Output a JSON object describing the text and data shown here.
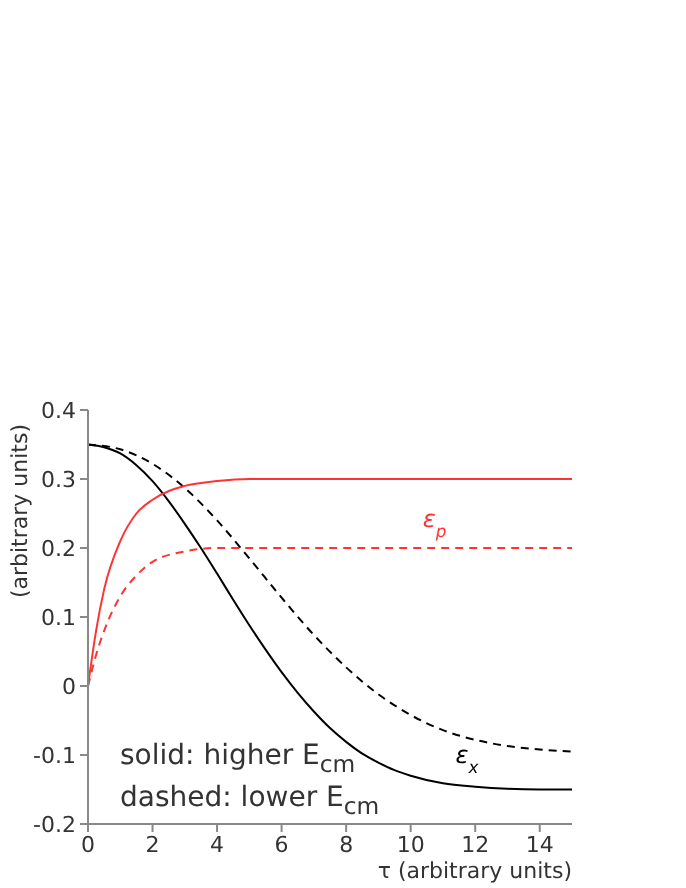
{
  "chart_data": {
    "type": "line",
    "xlabel": "τ (arbitrary units)",
    "ylabel": "(arbitrary units)",
    "xlim": [
      0,
      15
    ],
    "xticks": [
      0,
      2,
      4,
      6,
      8,
      10,
      12,
      14
    ],
    "ylim": [
      -0.2,
      0.4
    ],
    "yticks": [
      -0.2,
      -0.1,
      0,
      0.1,
      0.2,
      0.3,
      0.4
    ],
    "marker": "none",
    "series": [
      {
        "name": "ε$_{x}$",
        "color": "#000000",
        "line_style": "solid",
        "x": [
          0,
          0.5,
          1,
          1.5,
          2,
          2.5,
          3,
          3.5,
          4,
          4.5,
          5,
          5.5,
          6,
          6.5,
          7,
          7.5,
          8,
          8.5,
          9,
          9.5,
          10,
          11,
          12,
          13,
          14,
          15
        ],
        "values": [
          0.35,
          0.346,
          0.337,
          0.32,
          0.297,
          0.268,
          0.235,
          0.2,
          0.163,
          0.125,
          0.088,
          0.053,
          0.02,
          -0.01,
          -0.037,
          -0.061,
          -0.081,
          -0.098,
          -0.111,
          -0.122,
          -0.13,
          -0.141,
          -0.146,
          -0.149,
          -0.15,
          -0.15
        ]
      },
      {
        "color": "#000000",
        "line_style": "dashed",
        "x": [
          0,
          1,
          2,
          3,
          4,
          5,
          6,
          7,
          8,
          9,
          10,
          11,
          12,
          13,
          14,
          15
        ],
        "values": [
          0.35,
          0.343,
          0.322,
          0.287,
          0.24,
          0.185,
          0.128,
          0.074,
          0.027,
          -0.012,
          -0.042,
          -0.064,
          -0.078,
          -0.087,
          -0.092,
          -0.095
        ]
      },
      {
        "name": "ε$_{p}$",
        "color": "#ff3333",
        "line_style": "solid",
        "x": [
          0,
          0.25,
          0.5,
          1,
          1.5,
          2,
          3,
          4,
          5,
          7,
          10,
          15
        ],
        "values": [
          0,
          0.08,
          0.14,
          0.21,
          0.25,
          0.27,
          0.29,
          0.297,
          0.3,
          0.3,
          0.3,
          0.3
        ]
      },
      {
        "color": "#ff3333",
        "line_style": "dashed",
        "x": [
          0,
          0.25,
          0.5,
          1,
          1.5,
          2,
          3,
          4,
          5,
          7,
          10,
          15
        ],
        "values": [
          0,
          0.045,
          0.08,
          0.13,
          0.16,
          0.18,
          0.195,
          0.2,
          0.2,
          0.2,
          0.2,
          0.2
        ]
      }
    ],
    "annotations": [
      "solid: higher E$_{cm}$",
      "dashed: lower E$_{cm}$"
    ]
  }
}
